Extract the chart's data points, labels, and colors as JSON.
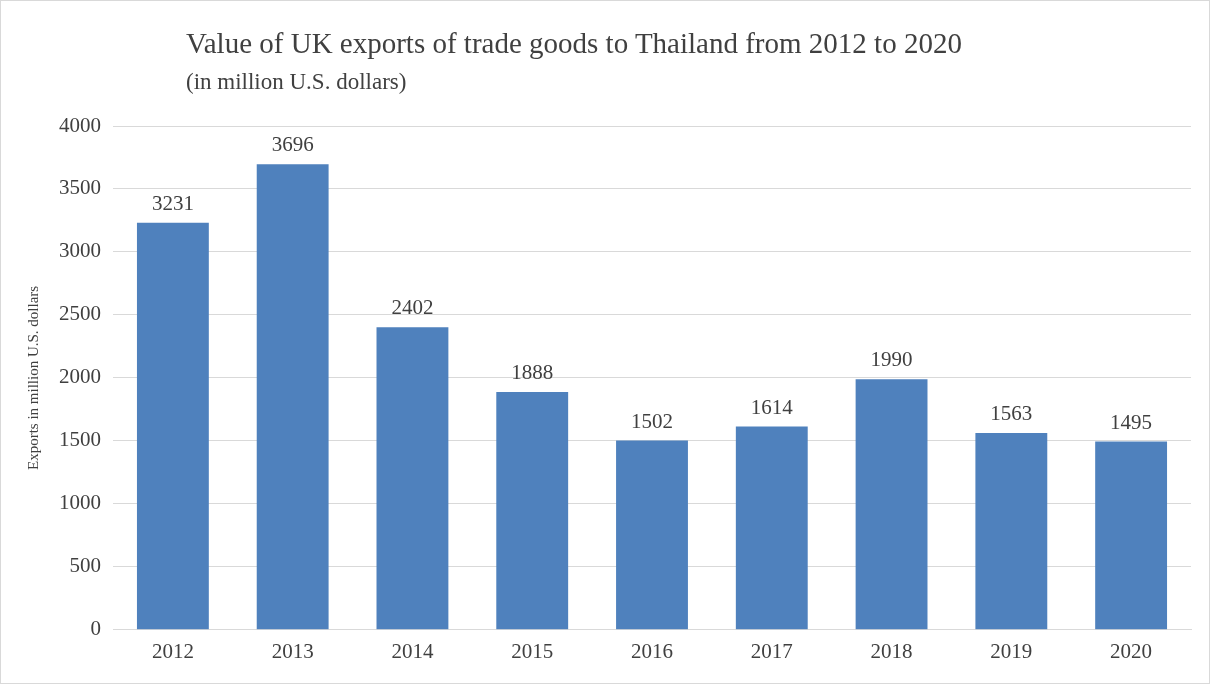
{
  "chart_data": {
    "type": "bar",
    "title": "Value of UK exports of trade goods to Thailand from 2012 to 2020",
    "subtitle": "(in million U.S. dollars)",
    "ylabel": "Exports in million U.S. dollars",
    "categories": [
      "2012",
      "2013",
      "2014",
      "2015",
      "2016",
      "2017",
      "2018",
      "2019",
      "2020"
    ],
    "values": [
      3231,
      3696,
      2402,
      1888,
      1502,
      1614,
      1990,
      1563,
      1495
    ],
    "color": "#4f81bd",
    "ylim": [
      0,
      4000
    ],
    "yticks": [
      0,
      500,
      1000,
      1500,
      2000,
      2500,
      3000,
      3500,
      4000
    ],
    "grid": "y",
    "data_labels": true
  }
}
